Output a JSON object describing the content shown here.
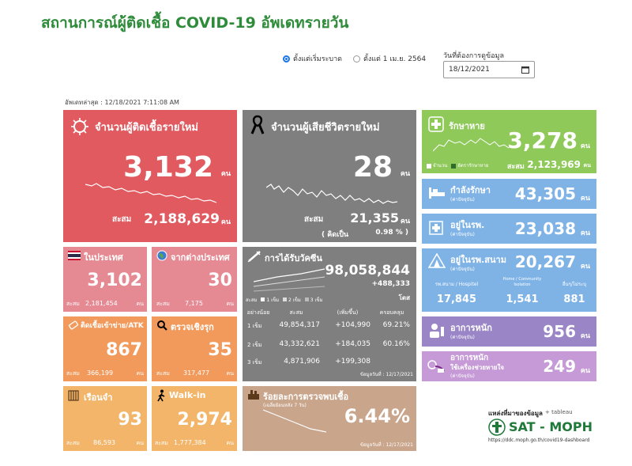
{
  "header": {
    "title": "สถานการณ์ผู้ติดเชื้อ COVID-19 อัพเดทรายวัน",
    "radio_since_start": "ตั้งแต่เริ่มระบาด",
    "radio_since_april": "ตั้งแต่ 1 เม.ย. 2564",
    "date_label": "วันที่ต้องการดูข้อมูล",
    "date_value": "18/12/2021",
    "updated": "อัพเดทล่าสุด : 12/18/2021 7:11:08 AM"
  },
  "new_cases": {
    "label": "จำนวนผู้ติดเชื้อรายใหม่",
    "value": "3,132",
    "unit": "คน",
    "total_label": "สะสม",
    "total": "2,188,629",
    "total_unit": "คน"
  },
  "new_deaths": {
    "label": "จำนวนผู้เสียชีวิตรายใหม่",
    "value": "28",
    "unit": "คน",
    "total_label": "สะสม",
    "total": "21,355",
    "total_unit": "คน",
    "pct_label": "( คิดเป็น",
    "pct": "0.98 % )"
  },
  "recovered": {
    "label": "รักษาหาย",
    "value": "3,278",
    "unit": "คน",
    "legend_daily": "จำนวน",
    "legend_avg": "อัตรารักษาหาย",
    "total_label": "สะสม",
    "total": "2,123,969",
    "total_unit": "คน"
  },
  "treating": {
    "label": "กำลังรักษา",
    "sub": "(ค่าปัจจุบัน)",
    "value": "43,305",
    "unit": "คน"
  },
  "in_hospital": {
    "label": "อยู่ในรพ.",
    "sub": "(ค่าปัจจุบัน)",
    "value": "23,038",
    "unit": "คน"
  },
  "field_hospital": {
    "label": "อยู่ในรพ.สนาม",
    "sub": "(ค่าปัจจุบัน)",
    "value": "20,267",
    "unit": "คน",
    "col1_label": "รพ.สนาม / Hospitel",
    "col1": "17,845",
    "col2_label": "Home / Community Isolation",
    "col2": "1,541",
    "col3_label": "อื่นๆ/ไม่ระบุ",
    "col3": "881"
  },
  "severe": {
    "label": "อาการหนัก",
    "sub": "(ค่าปัจจุบัน)",
    "value": "956",
    "unit": "คน"
  },
  "ventilator": {
    "label": "อาการหนัก",
    "label2": "ใช้เครื่องช่วยหายใจ",
    "sub": "(ค่าปัจจุบัน)",
    "value": "249",
    "unit": "คน"
  },
  "domestic": {
    "label": "ในประเทศ",
    "value": "3,102",
    "total_label": "สะสม",
    "total": "2,181,454",
    "total_unit": "คน"
  },
  "abroad": {
    "label": "จากต่างประเทศ",
    "value": "30",
    "total_label": "สะสม",
    "total": "7,175",
    "total_unit": "คน"
  },
  "prison": {
    "label": "ติดเชื้อเข้าข่าย/ATK",
    "value": "867",
    "total_label": "สะสม",
    "total": "366,199",
    "total_unit": "คน"
  },
  "proactive": {
    "label": "ตรวจเชิงรุก",
    "value": "35",
    "total_label": "สะสม",
    "total": "317,477",
    "total_unit": "คน"
  },
  "jail": {
    "label": "เรือนจำ",
    "value": "93",
    "total_label": "สะสม",
    "total": "86,593",
    "total_unit": "คน"
  },
  "walkin": {
    "label": "Walk-in",
    "value": "2,974",
    "total_label": "สะสม",
    "total": "1,777,384",
    "total_unit": "คน"
  },
  "vaccine": {
    "label": "การได้รับวัคซีน",
    "value": "98,058,844",
    "delta": "+488,333",
    "unit": "โดส",
    "legend": [
      "สะสม",
      "1 เข็ม",
      "2 เข็ม",
      "3 เข็ม"
    ],
    "headers": [
      "อย่างน้อย",
      "สะสม",
      "(เพิ่มขึ้น)",
      "ครอบคลุม"
    ],
    "rows": [
      {
        "dose": "1 เข็ม",
        "total": "49,854,317",
        "inc": "+104,990",
        "pct": "69.21%"
      },
      {
        "dose": "2 เข็ม",
        "total": "43,332,621",
        "inc": "+184,035",
        "pct": "60.16%"
      },
      {
        "dose": "3 เข็ม",
        "total": "4,871,906",
        "inc": "+199,308",
        "pct": ""
      }
    ],
    "asof": "ข้อมูลวันที่ : 12/17/2021"
  },
  "positivity": {
    "label": "ร้อยละการตรวจพบเชื้อ",
    "sub": "(เฉลี่ยย้อนหลัง 7 วัน)",
    "value": "6.44%",
    "asof": "ข้อมูลวันที่ : 12/17/2021"
  },
  "source": {
    "label": "แหล่งที่มาของข้อมูล",
    "tableau": "+ tableau",
    "brand": "SAT - MOPH",
    "url": "https://ddc.moph.go.th/covid19-dashboard"
  },
  "colors": {
    "red": "#e05a60",
    "gray": "#7f7f7f",
    "green": "#8fc95a",
    "blue": "#7fb3e6",
    "pink": "#e58a93",
    "orange": "#f29a5c",
    "sand": "#f2b56a",
    "tan": "#c9a58c",
    "purple": "#9a86c6",
    "lavender": "#c59ad6"
  }
}
